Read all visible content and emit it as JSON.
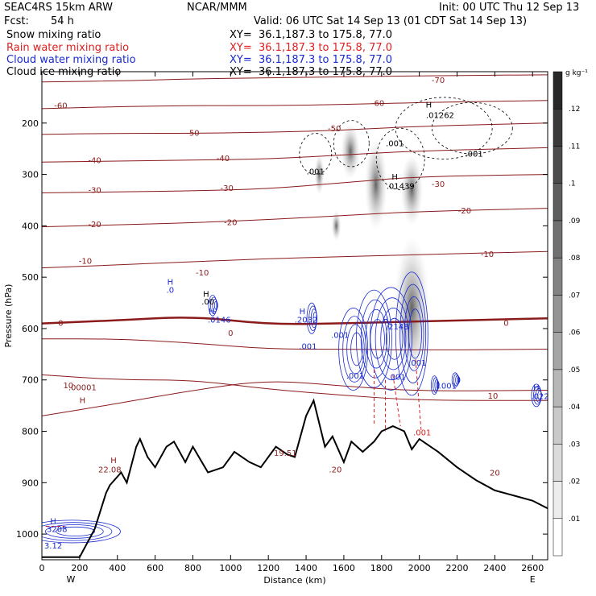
{
  "header": {
    "model": "SEAC4RS 15km ARW",
    "org": "NCAR/MMM",
    "init": "Init: 00 UTC Thu 12 Sep 13",
    "fcst_label": "Fcst:",
    "fcst_value": "54 h",
    "valid": "Valid: 06 UTC Sat 14 Sep 13 (01 CDT Sat 14 Sep 13)",
    "fields": [
      {
        "name": "Snow mixing ratio",
        "color": "#000000",
        "xy": "XY=  36.1,187.3 to 175.8, 77.0"
      },
      {
        "name": "Rain water mixing ratio",
        "color": "#e02020",
        "xy": "XY=  36.1,187.3 to 175.8, 77.0"
      },
      {
        "name": "Cloud water mixing ratio",
        "color": "#1a2bd0",
        "xy": "XY=  36.1,187.3 to 175.8, 77.0"
      },
      {
        "name": "Cloud ice mixing ratio",
        "color": "#000000",
        "xy": "XY=  36.1,187.3 to 175.8, 77.0"
      }
    ]
  },
  "chart_data": {
    "type": "cross-section",
    "xlabel": "Distance (km)",
    "ylabel": "Pressure (hPa)",
    "xlim": [
      0,
      2680
    ],
    "ylim": [
      1050,
      100
    ],
    "x_ticks": [
      0,
      200,
      400,
      600,
      800,
      1000,
      1200,
      1400,
      1600,
      1800,
      2000,
      2200,
      2400,
      2600
    ],
    "y_ticks": [
      200,
      300,
      400,
      500,
      600,
      700,
      800,
      900,
      1000
    ],
    "endpoints": {
      "left": "W",
      "right": "E"
    },
    "colorbar": {
      "unit": "g kg⁻¹",
      "levels": [
        0.01,
        0.02,
        0.03,
        0.04,
        0.05,
        0.06,
        0.07,
        0.08,
        0.09,
        0.1,
        0.11,
        0.12
      ],
      "labels": [
        ".01",
        ".02",
        ".03",
        ".04",
        ".05",
        ".06",
        ".07",
        ".08",
        ".09",
        ".1",
        ".11",
        ".12"
      ]
    },
    "temperature_isotherms": [
      {
        "label": "-70",
        "p": [
          120,
          118,
          114,
          112,
          110,
          108,
          106
        ]
      },
      {
        "label": "-60",
        "p": [
          172,
          168,
          166,
          166,
          164,
          160,
          156
        ]
      },
      {
        "label": "-50",
        "p": [
          222,
          220,
          220,
          218,
          214,
          206,
          200
        ]
      },
      {
        "label": "-40",
        "p": [
          276,
          274,
          272,
          270,
          262,
          254,
          248
        ]
      },
      {
        "label": "-30",
        "p": [
          336,
          334,
          332,
          328,
          316,
          304,
          300
        ]
      },
      {
        "label": "-20",
        "p": [
          402,
          398,
          394,
          388,
          380,
          372,
          366
        ]
      },
      {
        "label": "-10",
        "p": [
          482,
          476,
          470,
          464,
          460,
          456,
          450
        ]
      },
      {
        "label": "0",
        "p": [
          590,
          584,
          576,
          592,
          590,
          586,
          580
        ]
      },
      {
        "label": "10",
        "p": [
          690,
          700,
          700,
          718,
          730,
          740,
          740
        ]
      }
    ],
    "isotherm_x": [
      0,
      400,
      800,
      1200,
      1600,
      2000,
      2680
    ],
    "extra_isotherm_p": [
      [
        620,
        620,
        628,
        640,
        640,
        642,
        640
      ],
      [
        770,
        746,
        720,
        700,
        712,
        722,
        720
      ]
    ],
    "terrain": {
      "label": "terrain",
      "x": [
        0,
        100,
        200,
        280,
        340,
        360,
        420,
        450,
        500,
        520,
        560,
        600,
        660,
        700,
        760,
        800,
        880,
        960,
        1020,
        1100,
        1160,
        1240,
        1300,
        1340,
        1400,
        1440,
        1500,
        1540,
        1600,
        1640,
        1700,
        1760,
        1800,
        1860,
        1920,
        1960,
        2000,
        2100,
        2200,
        2300,
        2400,
        2500,
        2600,
        2680
      ],
      "p": [
        1045,
        1045,
        1045,
        990,
        920,
        905,
        880,
        900,
        830,
        815,
        850,
        870,
        830,
        820,
        860,
        830,
        880,
        870,
        840,
        860,
        870,
        830,
        845,
        850,
        770,
        740,
        830,
        810,
        860,
        820,
        840,
        820,
        800,
        790,
        800,
        835,
        815,
        840,
        870,
        895,
        915,
        925,
        935,
        950
      ]
    },
    "annotations": [
      {
        "text": "H",
        "x": 215,
        "p": 745
      },
      {
        "text": ".00001",
        "x": 215,
        "p": 720
      },
      {
        "text": "H",
        "x": 380,
        "p": 862
      },
      {
        "text": "22.08",
        "x": 360,
        "p": 880
      },
      {
        "text": "19.51",
        "x": 1290,
        "p": 848
      },
      {
        "text": ".20",
        "x": 1555,
        "p": 880
      },
      {
        "text": ".001",
        "x": 2015,
        "p": 808
      },
      {
        "text": "H",
        "x": 870,
        "p": 538
      },
      {
        "text": ".00",
        "x": 880,
        "p": 553
      },
      {
        "text": "H",
        "x": 680,
        "p": 515
      },
      {
        "text": ".0",
        "x": 680,
        "p": 530
      },
      {
        "text": "H",
        "x": 900,
        "p": 572
      },
      {
        "text": ".0146",
        "x": 940,
        "p": 588
      },
      {
        "text": "H",
        "x": 1380,
        "p": 572
      },
      {
        "text": ".2032",
        "x": 1400,
        "p": 588
      },
      {
        "text": ".001",
        "x": 1410,
        "p": 640
      },
      {
        "text": ".001",
        "x": 1580,
        "p": 618
      },
      {
        "text": "H",
        "x": 1820,
        "p": 588
      },
      {
        "text": "2148",
        "x": 1890,
        "p": 602
      },
      {
        "text": ".001",
        "x": 1660,
        "p": 697
      },
      {
        "text": ".001",
        "x": 1880,
        "p": 700
      },
      {
        "text": ".001",
        "x": 1990,
        "p": 672
      },
      {
        "text": ".001",
        "x": 2150,
        "p": 717
      },
      {
        "text": "H",
        "x": 2620,
        "p": 720
      },
      {
        "text": ".022",
        "x": 2640,
        "p": 737
      },
      {
        "text": "H",
        "x": 60,
        "p": 980
      },
      {
        "text": "3208",
        "x": 80,
        "p": 996
      },
      {
        "text": "3.12",
        "x": 60,
        "p": 1028
      },
      {
        "text": ".001",
        "x": 1450,
        "p": 300
      },
      {
        "text": ".001",
        "x": 1870,
        "p": 245
      },
      {
        "text": "H",
        "x": 1870,
        "p": 310
      },
      {
        "text": ".01439",
        "x": 1900,
        "p": 328
      },
      {
        "text": "H",
        "x": 2050,
        "p": 170
      },
      {
        "text": ".01262",
        "x": 2110,
        "p": 190
      },
      {
        "text": ".001",
        "x": 2290,
        "p": 265
      }
    ],
    "isotherm_labels": [
      {
        "text": "-70",
        "x": 2100,
        "p": 116
      },
      {
        "text": "-60",
        "x": 100,
        "p": 165
      },
      {
        "text": "-60",
        "x": 1780,
        "p": 160
      },
      {
        "text": "-50",
        "x": 800,
        "p": 218
      },
      {
        "text": "-50",
        "x": 1550,
        "p": 210
      },
      {
        "text": "-40",
        "x": 280,
        "p": 272
      },
      {
        "text": "-40",
        "x": 960,
        "p": 268
      },
      {
        "text": "-30",
        "x": 280,
        "p": 330
      },
      {
        "text": "-30",
        "x": 980,
        "p": 326
      },
      {
        "text": "-30",
        "x": 2100,
        "p": 318
      },
      {
        "text": "-20",
        "x": 280,
        "p": 396
      },
      {
        "text": "-20",
        "x": 1000,
        "p": 392
      },
      {
        "text": "-20",
        "x": 2240,
        "p": 370
      },
      {
        "text": "-10",
        "x": 230,
        "p": 468
      },
      {
        "text": "-10",
        "x": 850,
        "p": 490
      },
      {
        "text": "-10",
        "x": 2360,
        "p": 454
      },
      {
        "text": "0",
        "x": 100,
        "p": 588
      },
      {
        "text": "0",
        "x": 1000,
        "p": 608
      },
      {
        "text": "0",
        "x": 2460,
        "p": 588
      },
      {
        "text": "10",
        "x": 140,
        "p": 710
      },
      {
        "text": "10",
        "x": 2390,
        "p": 730
      },
      {
        "text": "20",
        "x": 2400,
        "p": 880
      }
    ]
  }
}
